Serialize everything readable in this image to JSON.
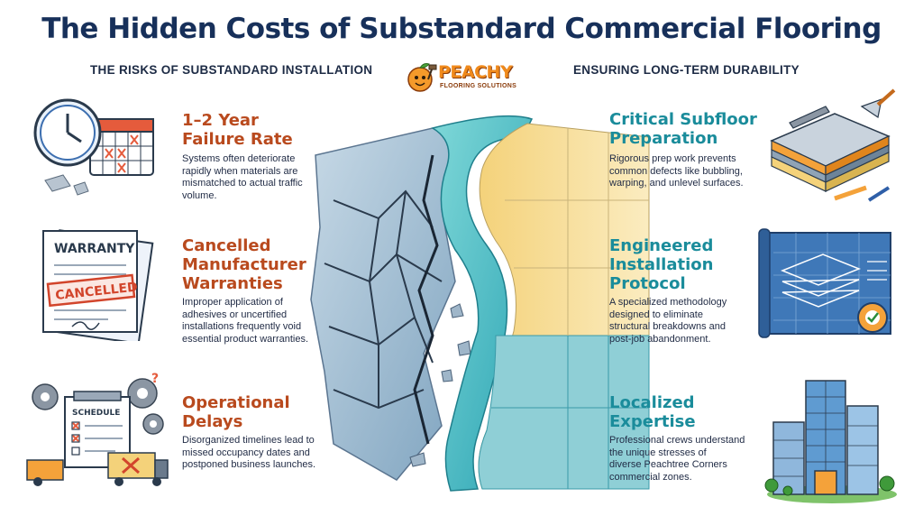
{
  "title": "The Hidden Costs of Substandard Commercial Flooring",
  "left_heading": "THE RISKS OF SUBSTANDARD INSTALLATION",
  "right_heading": "ENSURING LONG-TERM DURABILITY",
  "logo": {
    "name": "PEACHY",
    "tagline": "FLOORING SOLUTIONS"
  },
  "risks": [
    {
      "title_line1": "1–2 Year",
      "title_line2": "Failure Rate",
      "title_line3": "",
      "desc": [
        "Systems often deteriorate",
        "rapidly when materials are",
        "mismatched to actual traffic",
        "volume."
      ],
      "icon": "clock-calendar-icon"
    },
    {
      "title_line1": "Cancelled",
      "title_line2": "Manufacturer",
      "title_line3": "Warranties",
      "desc": [
        "Improper application of",
        "adhesives or uncertified",
        "installations frequently void",
        "essential product warranties."
      ],
      "icon": "cancelled-warranty-icon",
      "icon_text": {
        "warranty": "WARRANTY",
        "stamp": "CANCELLED"
      }
    },
    {
      "title_line1": "Operational",
      "title_line2": "Delays",
      "title_line3": "",
      "desc": [
        "Disorganized timelines lead to",
        "missed occupancy dates and",
        "postponed business launches."
      ],
      "icon": "schedule-delay-icon",
      "icon_text": {
        "schedule": "SCHEDULE"
      }
    }
  ],
  "solutions": [
    {
      "title_line1": "Critical Subfloor",
      "title_line2": "Preparation",
      "title_line3": "",
      "desc": [
        "Rigorous prep work prevents",
        "common defects like bubbling,",
        "warping, and unlevel surfaces."
      ],
      "icon": "subfloor-layers-icon"
    },
    {
      "title_line1": "Engineered",
      "title_line2": "Installation",
      "title_line3": "Protocol",
      "desc": [
        "A specialized methodology",
        "designed to eliminate",
        "structural breakdowns and",
        "post-job abandonment."
      ],
      "icon": "blueprint-icon"
    },
    {
      "title_line1": "Localized",
      "title_line2": "Expertise",
      "title_line3": "",
      "desc": [
        "Professional crews understand",
        "the unique stresses of",
        "diverse Peachtree Corners",
        "commercial zones."
      ],
      "icon": "office-buildings-icon"
    }
  ]
}
